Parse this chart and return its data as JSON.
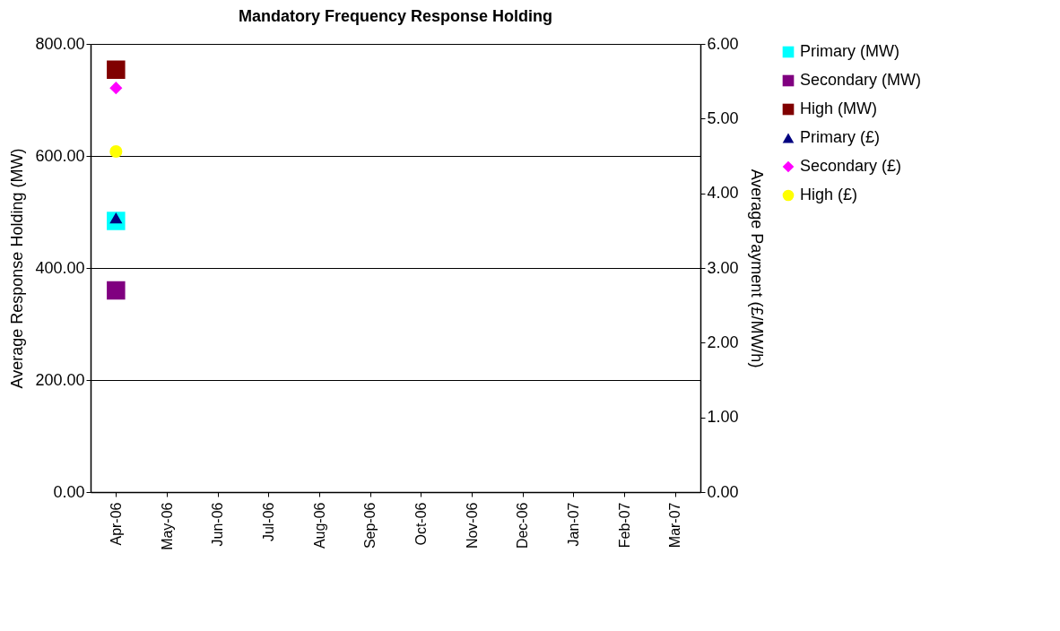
{
  "chart_data": {
    "type": "line",
    "title": "Mandatory Frequency Response Holding",
    "ylabel": "Average Response Holding (MW)",
    "y2label": "Average Payment (£/MW/h)",
    "categories": [
      "Apr-06",
      "May-06",
      "Jun-06",
      "Jul-06",
      "Aug-06",
      "Sep-06",
      "Oct-06",
      "Nov-06",
      "Dec-06",
      "Jan-07",
      "Feb-07",
      "Mar-07"
    ],
    "ylim": [
      0,
      800
    ],
    "yticks": [
      {
        "value": 0,
        "label": "0.00"
      },
      {
        "value": 200,
        "label": "200.00"
      },
      {
        "value": 400,
        "label": "400.00"
      },
      {
        "value": 600,
        "label": "600.00"
      },
      {
        "value": 800,
        "label": "800.00"
      }
    ],
    "y2lim": [
      0,
      6
    ],
    "y2ticks": [
      {
        "value": 0,
        "label": "0.00"
      },
      {
        "value": 1,
        "label": "1.00"
      },
      {
        "value": 2,
        "label": "2.00"
      },
      {
        "value": 3,
        "label": "3.00"
      },
      {
        "value": 4,
        "label": "4.00"
      },
      {
        "value": 5,
        "label": "5.00"
      },
      {
        "value": 6,
        "label": "6.00"
      }
    ],
    "grid": "y",
    "legend": "right",
    "series": [
      {
        "name": "Primary (MW)",
        "color": "#00ffff",
        "marker": "square",
        "values": [
          484,
          null,
          null,
          null,
          null,
          null,
          null,
          null,
          null,
          null,
          null,
          null
        ]
      },
      {
        "name": "Secondary (MW)",
        "color": "#800080",
        "marker": "square",
        "values": [
          360,
          null,
          null,
          null,
          null,
          null,
          null,
          null,
          null,
          null,
          null,
          null
        ]
      },
      {
        "name": "High (MW)",
        "color": "#800000",
        "marker": "square",
        "values": [
          754,
          null,
          null,
          null,
          null,
          null,
          null,
          null,
          null,
          null,
          null,
          null
        ]
      },
      {
        "name": "Primary (£)",
        "color": "#000080",
        "marker": "triangle",
        "axis": "y2",
        "values": [
          3.67,
          null,
          null,
          null,
          null,
          null,
          null,
          null,
          null,
          null,
          null,
          null
        ]
      },
      {
        "name": "Secondary (£)",
        "color": "#ff00ff",
        "marker": "diamond",
        "axis": "y2",
        "values": [
          5.41,
          null,
          null,
          null,
          null,
          null,
          null,
          null,
          null,
          null,
          null,
          null
        ]
      },
      {
        "name": "High (£)",
        "color": "#ffff00",
        "marker": "circle",
        "axis": "y2",
        "values": [
          4.56,
          null,
          null,
          null,
          null,
          null,
          null,
          null,
          null,
          null,
          null,
          null
        ]
      }
    ]
  }
}
